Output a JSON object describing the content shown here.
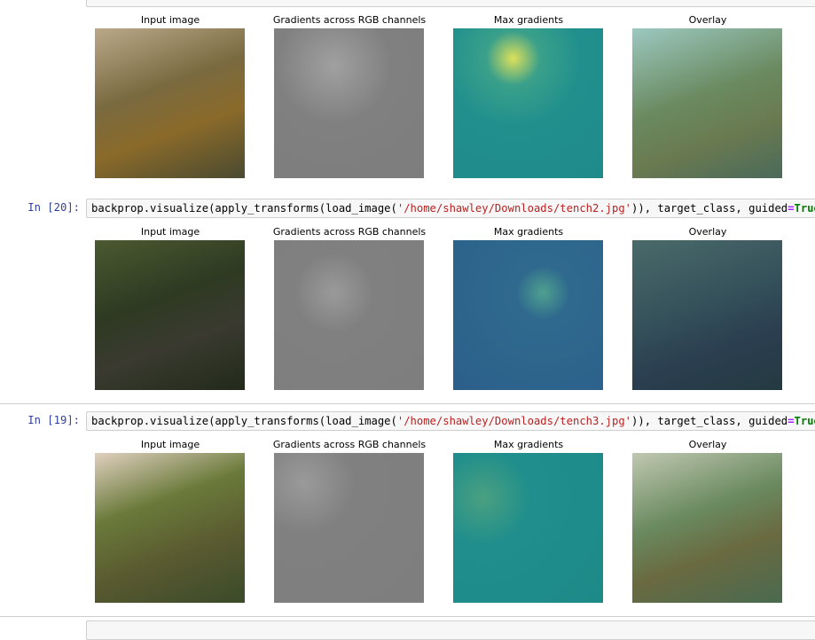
{
  "outputs": [
    {
      "panel_titles": [
        "Input image",
        "Gradients across RGB channels",
        "Max gradients",
        "Overlay"
      ]
    },
    {
      "prompt": "In [20]:",
      "code": [
        "backprop.visualize(apply_transforms(load_image(",
        "'/home/shawley/Downloads/tench2.jpg'",
        ")), target_class, guided",
        "=",
        "True"
      ],
      "panel_titles": [
        "Input image",
        "Gradients across RGB channels",
        "Max gradients",
        "Overlay"
      ]
    },
    {
      "prompt": "In [19]:",
      "code": [
        "backprop.visualize(apply_transforms(load_image(",
        "'/home/shawley/Downloads/tench3.jpg'",
        ")), target_class, guided",
        "=",
        "True"
      ],
      "panel_titles": [
        "Input image",
        "Gradients across RGB channels",
        "Max gradients",
        "Overlay"
      ]
    }
  ]
}
